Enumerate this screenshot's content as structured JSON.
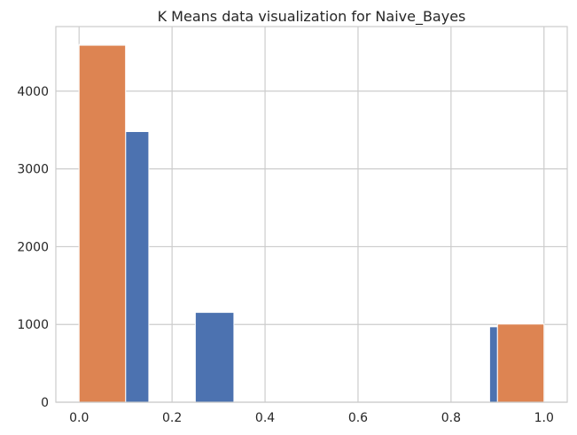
{
  "chart_data": {
    "type": "bar",
    "title": "K Means data visualization for Naive_Bayes",
    "xlabel": "",
    "ylabel": "",
    "xlim": [
      -0.05,
      1.05
    ],
    "ylim": [
      0,
      4830
    ],
    "xticks": [
      0.0,
      0.2,
      0.4,
      0.6,
      0.8,
      1.0
    ],
    "xtick_labels": [
      "0.0",
      "0.2",
      "0.4",
      "0.6",
      "0.8",
      "1.0"
    ],
    "yticks": [
      0,
      1000,
      2000,
      3000,
      4000
    ],
    "ytick_labels": [
      "0",
      "1000",
      "2000",
      "3000",
      "4000"
    ],
    "grid": true,
    "legend": false,
    "series": [
      {
        "color": "#4c72b0",
        "bins": [
          {
            "x0": 0.0,
            "x1": 0.1,
            "value": 4600
          },
          {
            "x0": 0.1,
            "x1": 0.15,
            "value": 3480
          },
          {
            "x0": 0.25,
            "x1": 0.333,
            "value": 1155
          },
          {
            "x0": 0.883,
            "x1": 0.9,
            "value": 970
          }
        ]
      },
      {
        "color": "#dd8452",
        "bins": [
          {
            "x0": 0.0,
            "x1": 0.1,
            "value": 4590
          },
          {
            "x0": 0.9,
            "x1": 1.0,
            "value": 1005
          }
        ]
      }
    ]
  }
}
